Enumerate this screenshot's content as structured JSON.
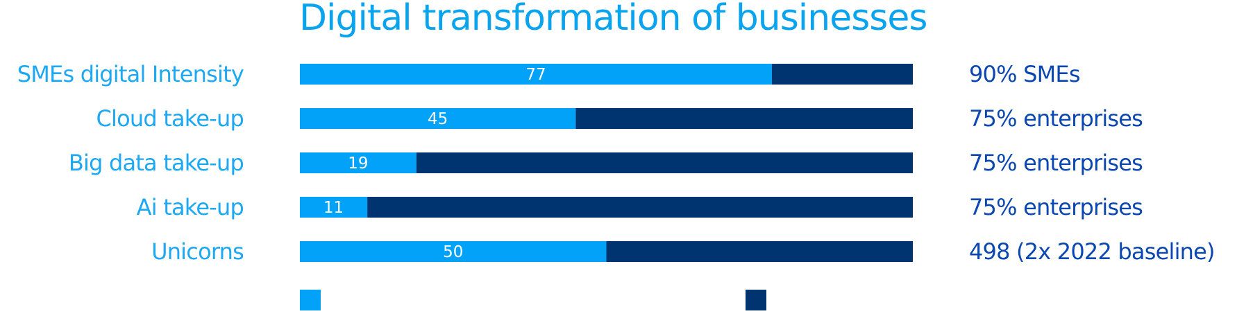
{
  "colors": {
    "current": "#02a2f8",
    "remaining": "#003470",
    "category_label": "#1ca8f2",
    "target_label": "#0b47b0",
    "title": "#0aa4ee"
  },
  "chart_data": {
    "type": "bar",
    "orientation": "horizontal",
    "stacked": true,
    "title": "Digital transformation of businesses",
    "categories": [
      "SMEs digital Intensity",
      "Cloud take-up",
      "Big data take-up",
      "Ai take-up",
      "Unicorns"
    ],
    "values": [
      77,
      45,
      19,
      11,
      50
    ],
    "series": [
      {
        "values": [
          77,
          45,
          19,
          11,
          50
        ]
      },
      {
        "values": [
          23,
          55,
          81,
          89,
          50
        ]
      }
    ],
    "xlim": [
      0,
      100
    ],
    "targets": [
      "90% SMEs",
      "75% enterprises",
      "75% enterprises",
      "75% enterprises",
      "498 (2x 2022 baseline)"
    ],
    "legend": {
      "position": "bottom",
      "entries": [
        "",
        ""
      ]
    },
    "grid": false
  }
}
